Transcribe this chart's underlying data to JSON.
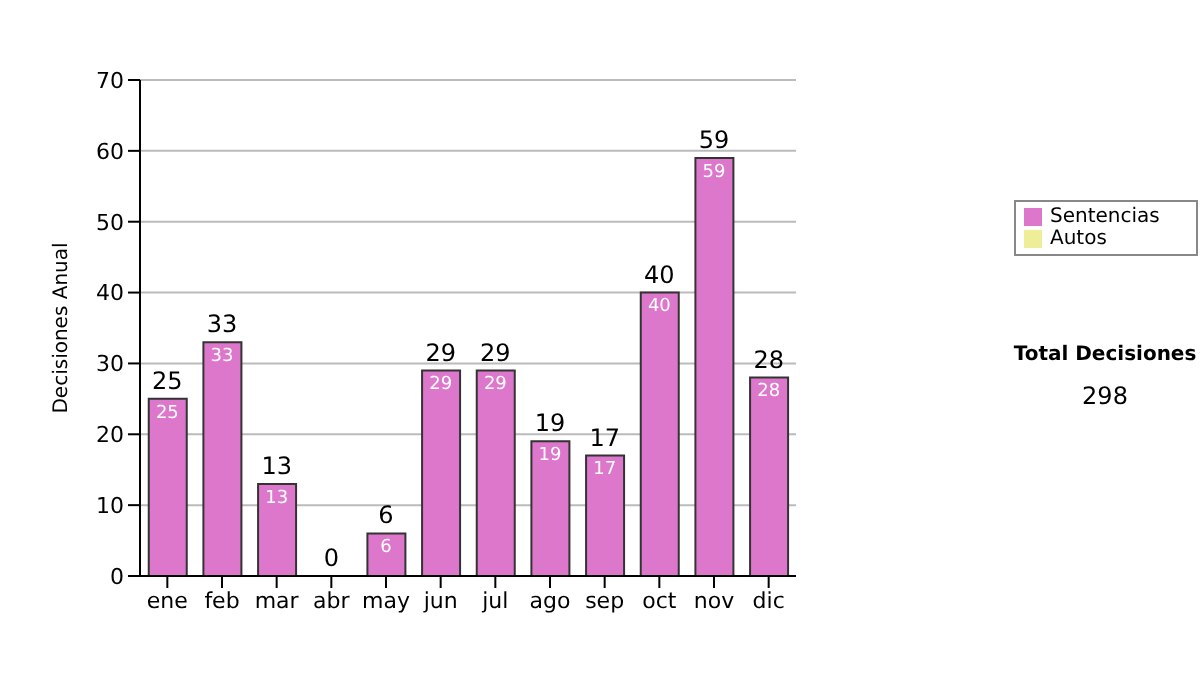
{
  "chart_data": {
    "type": "bar",
    "ylabel": "Decisiones Anual",
    "categories": [
      "ene",
      "feb",
      "mar",
      "abr",
      "may",
      "jun",
      "jul",
      "ago",
      "sep",
      "oct",
      "nov",
      "dic"
    ],
    "series": [
      {
        "name": "Sentencias",
        "color": "#dd77cc",
        "values": [
          25,
          33,
          13,
          0,
          6,
          29,
          29,
          19,
          17,
          40,
          59,
          28
        ],
        "value_labels": [
          "25",
          "33",
          "13",
          null,
          "6",
          "29",
          "29",
          "19",
          "17",
          "40",
          "59",
          "28"
        ]
      },
      {
        "name": "Autos",
        "color": "#eeee99",
        "values": [
          0,
          0,
          0,
          0,
          0,
          0,
          0,
          0,
          0,
          0,
          0,
          0
        ]
      }
    ],
    "stacked": true,
    "totals": [
      "25",
      "33",
      "13",
      "0",
      "6",
      "29",
      "29",
      "19",
      "17",
      "40",
      "59",
      "28"
    ],
    "ylim": [
      0,
      70
    ],
    "yticks": [
      0,
      10,
      20,
      30,
      40,
      50,
      60,
      70
    ],
    "grid": "y",
    "legend": "right",
    "annotations": [
      "Total Decisiones",
      "298"
    ]
  }
}
